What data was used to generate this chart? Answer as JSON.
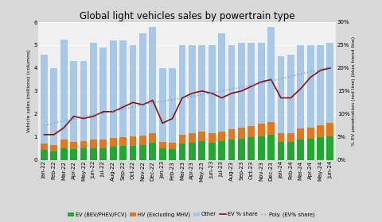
{
  "title": "Global light vehicles sales by powertrain type",
  "ylabel_left": "Vehicle sales (millions) (columns)",
  "ylabel_right": "% EV penetration (red line) (blue trend line)",
  "months": [
    "Jan-22",
    "Feb-22",
    "Mar-22",
    "Apr-22",
    "May-22",
    "Jun-22",
    "Jul-22",
    "Aug-22",
    "Sep-22",
    "Oct-22",
    "Nov-22",
    "Dec-22",
    "Jan-23",
    "Feb-23",
    "Mar-23",
    "Apr-23",
    "May-23",
    "Jun-23",
    "Jul-23",
    "Aug-23",
    "Sep-23",
    "Oct-23",
    "Nov-23",
    "Dec-23",
    "Jan-24",
    "Feb-24",
    "Mar-24",
    "Apr-24",
    "May-24",
    "Jun-24"
  ],
  "ev": [
    0.42,
    0.35,
    0.52,
    0.48,
    0.5,
    0.52,
    0.52,
    0.56,
    0.6,
    0.62,
    0.65,
    0.75,
    0.5,
    0.48,
    0.7,
    0.75,
    0.8,
    0.75,
    0.82,
    0.88,
    0.92,
    0.98,
    1.02,
    1.08,
    0.78,
    0.78,
    0.88,
    0.92,
    0.98,
    1.02
  ],
  "hv": [
    0.3,
    0.28,
    0.38,
    0.3,
    0.32,
    0.35,
    0.35,
    0.38,
    0.38,
    0.4,
    0.4,
    0.42,
    0.28,
    0.28,
    0.38,
    0.4,
    0.42,
    0.4,
    0.42,
    0.45,
    0.48,
    0.5,
    0.55,
    0.58,
    0.38,
    0.38,
    0.48,
    0.48,
    0.52,
    0.58
  ],
  "other": [
    3.88,
    3.37,
    4.35,
    3.52,
    3.48,
    4.23,
    4.03,
    4.26,
    4.22,
    3.98,
    4.45,
    4.63,
    3.22,
    3.24,
    3.92,
    3.85,
    3.78,
    3.85,
    4.26,
    3.67,
    3.7,
    3.62,
    3.53,
    4.14,
    3.34,
    3.44,
    3.64,
    3.6,
    3.5,
    3.5
  ],
  "ev_share": [
    5.5,
    5.5,
    7.0,
    9.5,
    9.0,
    9.5,
    10.5,
    10.5,
    11.5,
    12.5,
    12.0,
    13.0,
    8.0,
    9.0,
    13.5,
    14.5,
    15.0,
    14.5,
    13.5,
    14.5,
    15.0,
    16.0,
    17.0,
    17.5,
    13.5,
    13.5,
    15.5,
    18.0,
    19.5,
    20.0
  ],
  "poly_share": [
    7.5,
    8.0,
    8.5,
    9.0,
    9.5,
    9.8,
    10.2,
    10.6,
    11.0,
    11.5,
    12.0,
    12.5,
    12.8,
    13.1,
    13.5,
    13.8,
    14.2,
    14.6,
    15.0,
    15.4,
    15.8,
    16.2,
    16.7,
    17.2,
    17.7,
    18.2,
    18.7,
    19.2,
    19.7,
    20.3
  ],
  "color_ev": "#22a832",
  "color_hv": "#e07820",
  "color_other": "#a8c8e8",
  "color_ev_line": "#8b1010",
  "color_poly": "#5b9bd5",
  "ylim_left": [
    0,
    6
  ],
  "ylim_right": [
    0,
    30
  ],
  "yticks_left": [
    0,
    1,
    2,
    3,
    4,
    5,
    6
  ],
  "yticks_right": [
    0,
    5,
    10,
    15,
    20,
    25,
    30
  ],
  "bg_color": "#d8d8d8",
  "plot_bg_color": "#f0f0f0",
  "legend_labels": [
    "EV (BEV/PHEV/FCV)",
    "HV (Excluding MHV)",
    "Other",
    "EV % share",
    "Poly. (EV% share)"
  ],
  "title_fontsize": 8.5,
  "tick_fontsize": 5.0,
  "label_fontsize": 4.5,
  "legend_fontsize": 4.8
}
